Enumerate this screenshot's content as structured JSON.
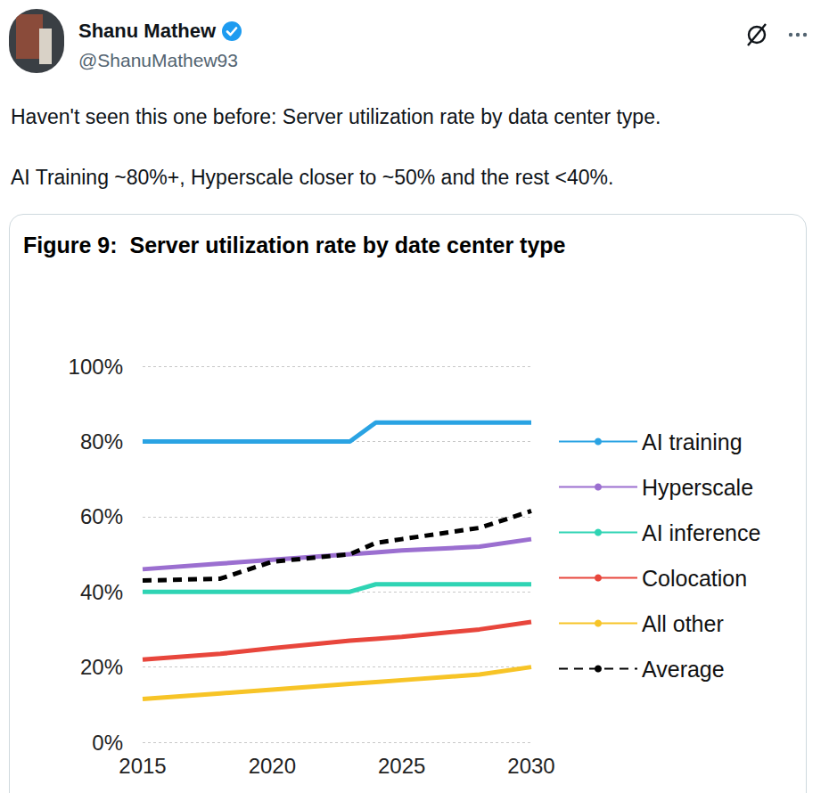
{
  "tweet": {
    "author": "Shanu Mathew",
    "handle": "@ShanuMathew93",
    "text": [
      "Haven't seen this one before: Server utilization rate by data center type.",
      "AI Training ~80%+, Hyperscale closer to ~50% and the rest <40%."
    ]
  },
  "chart_data": {
    "type": "line",
    "title": "Figure 9:  Server utilization rate by date center type",
    "x": [
      2015,
      2018,
      2020,
      2023,
      2024,
      2025,
      2028,
      2030
    ],
    "series": [
      {
        "name": "AI training",
        "color": "#2aa3e3",
        "line_style": "solid",
        "values": [
          80,
          80,
          80,
          80,
          85,
          85,
          85,
          85
        ]
      },
      {
        "name": "Hyperscale",
        "color": "#9b6fd0",
        "line_style": "solid",
        "values": [
          46,
          47.5,
          48.5,
          50,
          50.5,
          51,
          52,
          54
        ]
      },
      {
        "name": "AI inference",
        "color": "#2fd4b4",
        "line_style": "solid",
        "values": [
          40,
          40,
          40,
          40,
          42,
          42,
          42,
          42
        ]
      },
      {
        "name": "Colocation",
        "color": "#e8463c",
        "line_style": "solid",
        "values": [
          22,
          23.5,
          25,
          27,
          27.5,
          28,
          30,
          32
        ]
      },
      {
        "name": "All other",
        "color": "#f7c427",
        "line_style": "solid",
        "values": [
          11.5,
          13,
          14,
          15.5,
          16,
          16.5,
          18,
          20
        ]
      },
      {
        "name": "Average",
        "color": "#000000",
        "line_style": "dashed",
        "values": [
          43,
          43.5,
          48,
          50,
          53,
          54,
          57,
          61.5
        ]
      }
    ],
    "xlim": [
      2015,
      2030
    ],
    "xticks": [
      2015,
      2020,
      2025,
      2030
    ],
    "ylim": [
      0,
      100
    ],
    "yticks": [
      {
        "value": 0,
        "label": "0%"
      },
      {
        "value": 20,
        "label": "20%"
      },
      {
        "value": 40,
        "label": "40%"
      },
      {
        "value": 60,
        "label": "60%"
      },
      {
        "value": 80,
        "label": "80%"
      },
      {
        "value": 100,
        "label": "100%"
      }
    ],
    "grid": true,
    "legend": "right"
  }
}
